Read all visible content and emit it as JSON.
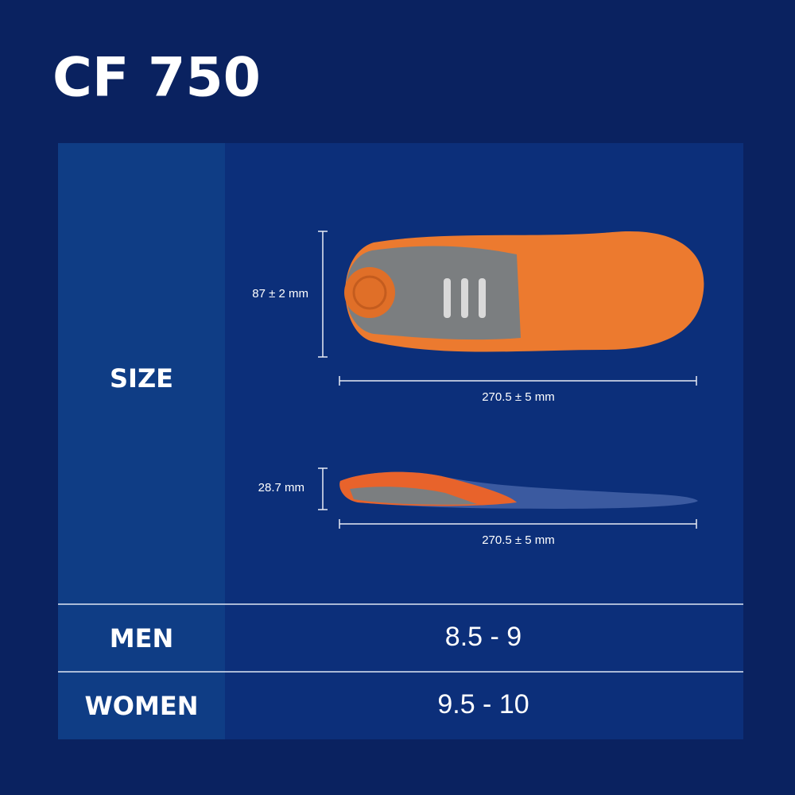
{
  "title": "CF 750",
  "size": {
    "label": "SIZE",
    "top_view": {
      "width": "87 ± 2 mm",
      "length": "270.5 ± 5 mm"
    },
    "side_view": {
      "height": "28.7 mm",
      "length": "270.5 ± 5 mm"
    }
  },
  "table": {
    "rows": [
      [
        "MEN",
        "8.5 - 9"
      ],
      [
        "WOMEN",
        "9.5 - 10"
      ]
    ]
  }
}
